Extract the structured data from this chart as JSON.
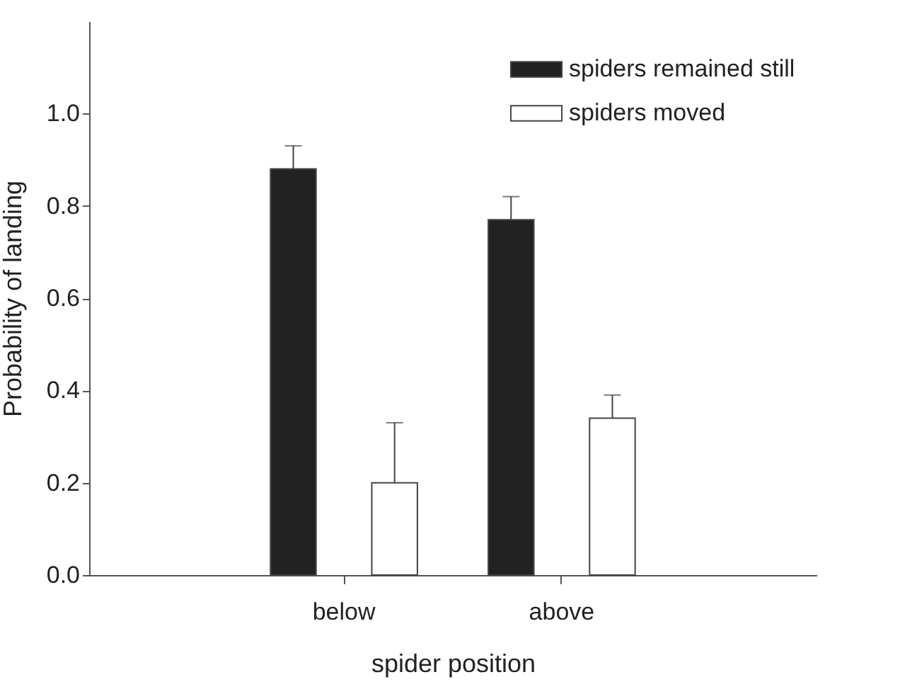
{
  "chart_data": {
    "type": "bar",
    "xlabel": "spider position",
    "ylabel": "Probability of landing",
    "categories": [
      "below",
      "above"
    ],
    "series": [
      {
        "name": "spiders remained still",
        "color": "#222222",
        "values": [
          0.88,
          0.77
        ],
        "errors": [
          [
            0.88,
            0.93
          ],
          [
            0.77,
            0.82
          ]
        ]
      },
      {
        "name": "spiders moved",
        "color": "#ffffff",
        "values": [
          0.2,
          0.34
        ],
        "errors": [
          [
            0.2,
            0.33
          ],
          [
            0.34,
            0.39
          ]
        ]
      }
    ],
    "ylim": [
      0,
      1.2
    ],
    "yticks": [
      {
        "value": 0,
        "label": "0.0"
      },
      0.2,
      0.4,
      0.6,
      0.8,
      {
        "value": 1,
        "label": "1.0"
      }
    ],
    "grid": false,
    "legend": "top right"
  }
}
